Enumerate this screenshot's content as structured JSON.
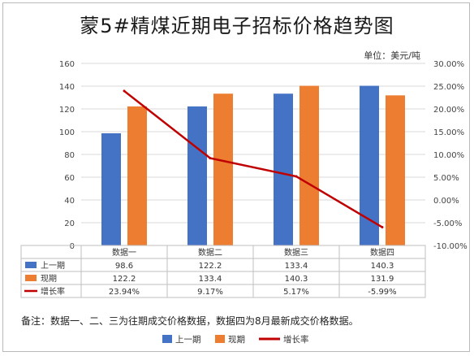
{
  "title": "蒙5#精煤近期电子招标价格趋势图",
  "unit": "单位：美元/吨",
  "note": "备注：数据一、二、三为往期成交价格数据，数据四为8月最新成交价格数据。",
  "chart_data": {
    "type": "bar",
    "categories": [
      "数据一",
      "数据二",
      "数据三",
      "数据四"
    ],
    "series": [
      {
        "name": "上一期",
        "kind": "bar",
        "values": [
          98.6,
          122.2,
          133.4,
          140.3
        ],
        "color": "#4472c4",
        "labels": [
          "98.6",
          "122.2",
          "133.4",
          "140.3"
        ]
      },
      {
        "name": "现期",
        "kind": "bar",
        "values": [
          122.2,
          133.4,
          140.3,
          131.9
        ],
        "color": "#ed7d31",
        "labels": [
          "122.2",
          "133.4",
          "140.3",
          "131.9"
        ]
      },
      {
        "name": "增长率",
        "kind": "line",
        "axis": "right",
        "values": [
          23.94,
          9.17,
          5.17,
          -5.99
        ],
        "color": "#c00000",
        "labels": [
          "23.94%",
          "9.17%",
          "5.17%",
          "-5.99%"
        ]
      }
    ],
    "y_left": {
      "min": 0,
      "max": 160,
      "step": 20
    },
    "y_right": {
      "min": -10,
      "max": 30,
      "step": 5,
      "ticks": [
        "-10.00%",
        "-5.00%",
        "0.00%",
        "5.00%",
        "10.00%",
        "15.00%",
        "20.00%",
        "25.00%",
        "30.00%"
      ]
    },
    "grid": true,
    "legend": "bottom"
  }
}
